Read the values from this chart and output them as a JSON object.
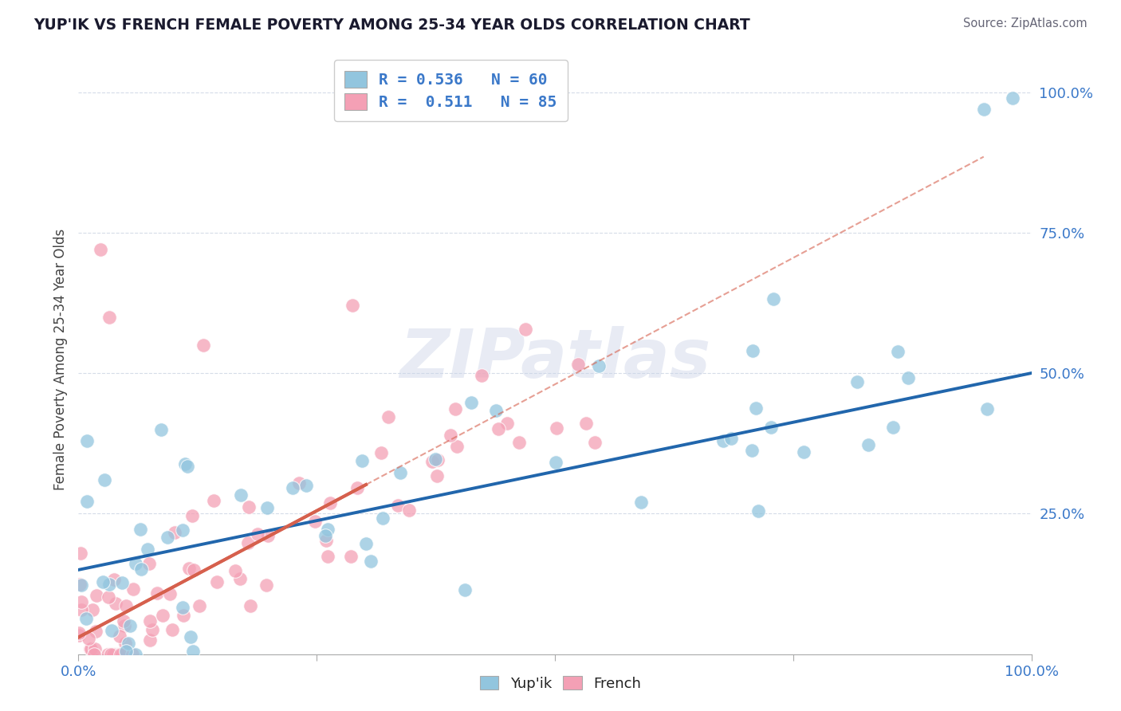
{
  "title": "YUP'IK VS FRENCH FEMALE POVERTY AMONG 25-34 YEAR OLDS CORRELATION CHART",
  "source": "Source: ZipAtlas.com",
  "ylabel": "Female Poverty Among 25-34 Year Olds",
  "legend_blue_R": "0.536",
  "legend_blue_N": "60",
  "legend_pink_R": "0.511",
  "legend_pink_N": "85",
  "blue_color": "#92c5de",
  "pink_color": "#f4a0b5",
  "blue_line_color": "#2166ac",
  "pink_line_color": "#d6604d",
  "watermark_color": "#ccd4e8"
}
